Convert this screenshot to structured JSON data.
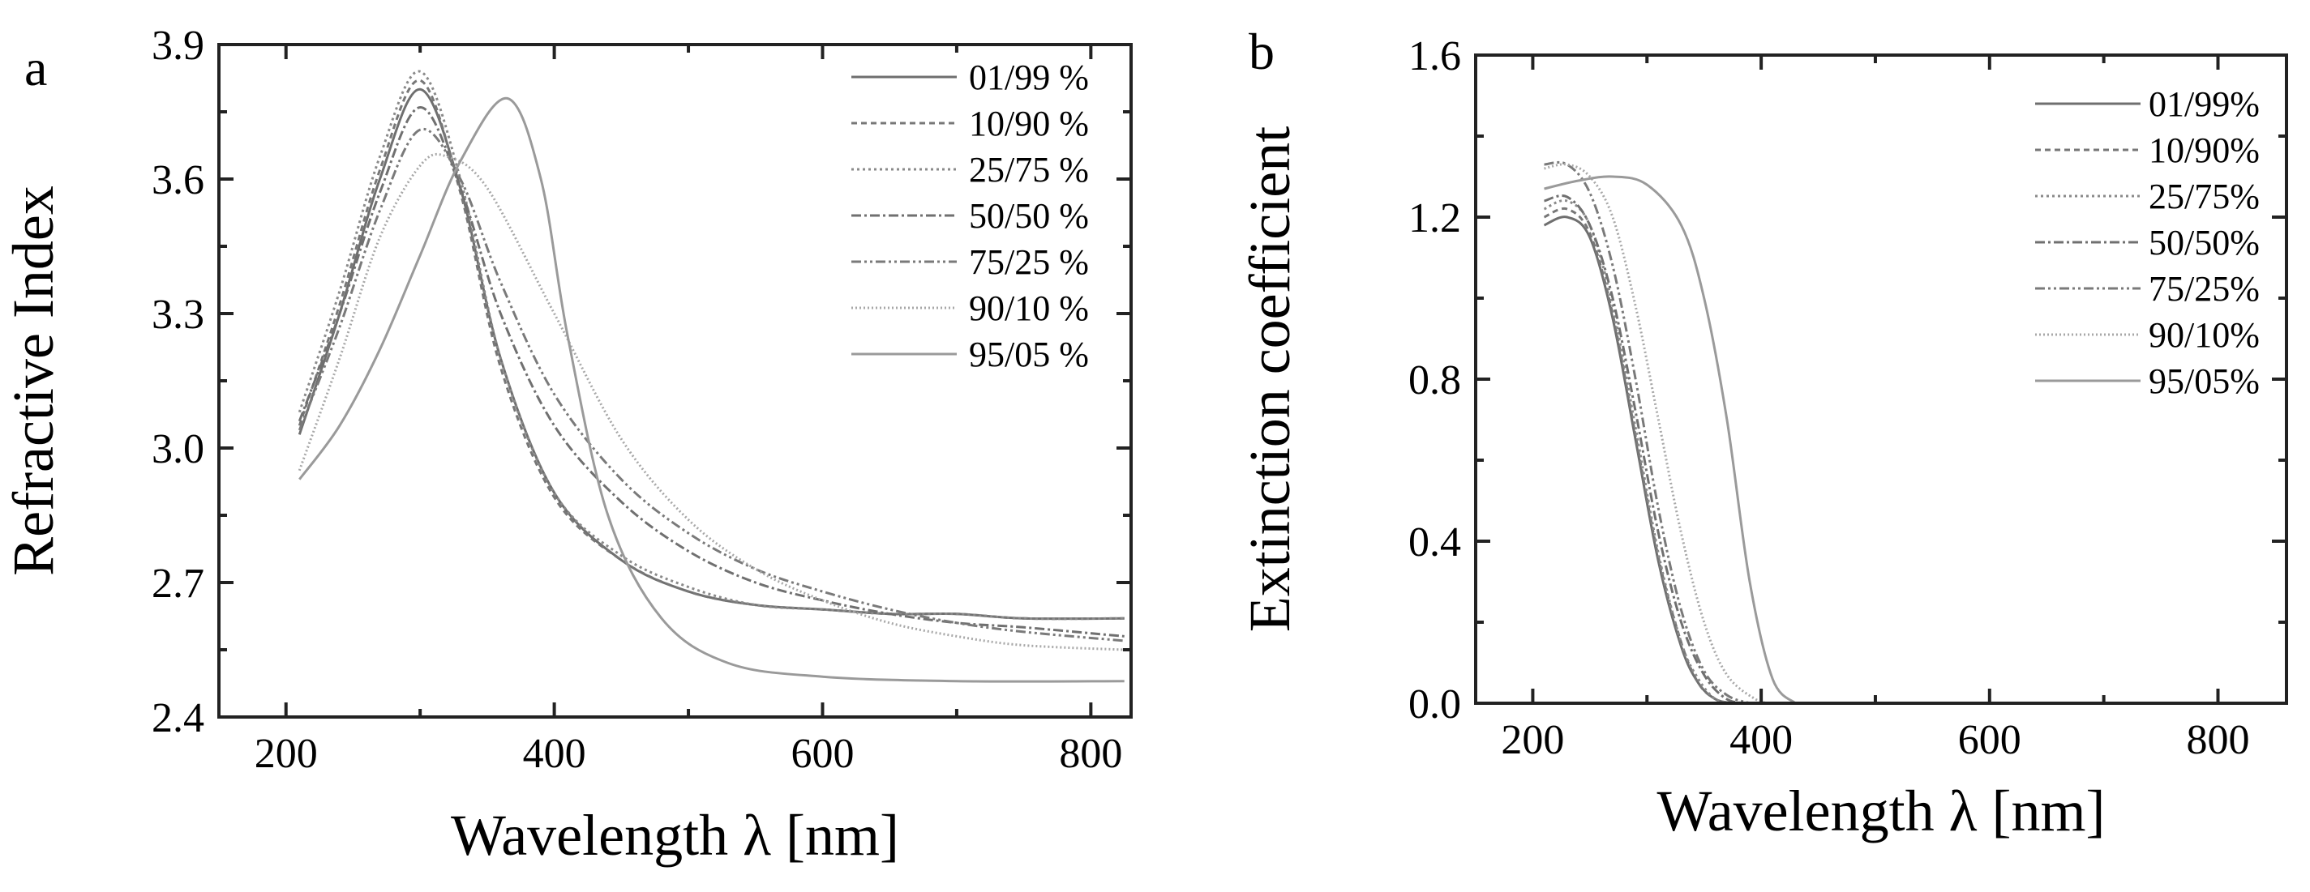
{
  "chart_data": [
    {
      "type": "line",
      "panel_label": "a",
      "xlabel": "Wavelength λ [nm]",
      "ylabel": "Refractive Index",
      "xlim": [
        150,
        830
      ],
      "ylim": [
        2.4,
        3.9
      ],
      "xticks": [
        200,
        400,
        600,
        800
      ],
      "yticks": [
        2.4,
        2.7,
        3.0,
        3.3,
        3.6,
        3.9
      ],
      "xtick_labels": [
        "200",
        "400",
        "600",
        "800"
      ],
      "ytick_labels": [
        "2.4",
        "2.7",
        "3.0",
        "3.3",
        "3.6",
        "3.9"
      ],
      "legend_position": "top-right",
      "series": [
        {
          "name": "01/99 %",
          "color": "#6f6f6f",
          "dash": "",
          "x": [
            210,
            240,
            270,
            300,
            330,
            360,
            400,
            450,
            500,
            550,
            600,
            650,
            700,
            750,
            825
          ],
          "y": [
            3.03,
            3.3,
            3.6,
            3.8,
            3.58,
            3.2,
            2.9,
            2.75,
            2.68,
            2.65,
            2.64,
            2.63,
            2.63,
            2.62,
            2.62
          ]
        },
        {
          "name": "10/90 %",
          "color": "#777777",
          "dash": "7,5",
          "x": [
            210,
            240,
            270,
            300,
            330,
            360,
            400,
            450,
            500,
            550,
            600,
            650,
            700,
            750,
            825
          ],
          "y": [
            3.05,
            3.32,
            3.62,
            3.82,
            3.57,
            3.18,
            2.89,
            2.75,
            2.68,
            2.65,
            2.64,
            2.63,
            2.63,
            2.62,
            2.62
          ]
        },
        {
          "name": "25/75 %",
          "color": "#8a8a8a",
          "dash": "3,4",
          "x": [
            210,
            240,
            270,
            300,
            330,
            360,
            400,
            450,
            500,
            550,
            600,
            650,
            700,
            750,
            825
          ],
          "y": [
            3.08,
            3.35,
            3.65,
            3.84,
            3.6,
            3.2,
            2.9,
            2.76,
            2.69,
            2.65,
            2.64,
            2.63,
            2.63,
            2.62,
            2.62
          ]
        },
        {
          "name": "50/50 %",
          "color": "#707070",
          "dash": "12,4,3,4",
          "x": [
            210,
            240,
            270,
            300,
            330,
            360,
            400,
            450,
            500,
            550,
            600,
            650,
            700,
            750,
            825
          ],
          "y": [
            3.06,
            3.3,
            3.57,
            3.76,
            3.58,
            3.3,
            3.05,
            2.88,
            2.77,
            2.7,
            2.66,
            2.63,
            2.61,
            2.6,
            2.58
          ]
        },
        {
          "name": "75/25 %",
          "color": "#7a7a7a",
          "dash": "12,4,3,4,3,4",
          "x": [
            210,
            240,
            270,
            300,
            330,
            360,
            400,
            450,
            500,
            550,
            600,
            650,
            700,
            750,
            825
          ],
          "y": [
            3.04,
            3.27,
            3.53,
            3.71,
            3.6,
            3.37,
            3.12,
            2.93,
            2.81,
            2.73,
            2.68,
            2.64,
            2.61,
            2.59,
            2.57
          ]
        },
        {
          "name": "90/10 %",
          "color": "#a8a8a8",
          "dash": "2,3",
          "x": [
            210,
            240,
            270,
            300,
            320,
            350,
            400,
            450,
            500,
            550,
            600,
            650,
            700,
            750,
            825
          ],
          "y": [
            2.95,
            3.2,
            3.47,
            3.63,
            3.65,
            3.58,
            3.3,
            3.02,
            2.84,
            2.73,
            2.66,
            2.61,
            2.58,
            2.56,
            2.55
          ]
        },
        {
          "name": "95/05 %",
          "color": "#9a9a9a",
          "dash": "",
          "x": [
            210,
            240,
            270,
            300,
            330,
            365,
            390,
            410,
            440,
            480,
            530,
            600,
            700,
            825
          ],
          "y": [
            2.93,
            3.05,
            3.22,
            3.43,
            3.64,
            3.78,
            3.6,
            3.25,
            2.85,
            2.62,
            2.52,
            2.49,
            2.48,
            2.48
          ]
        }
      ]
    },
    {
      "type": "line",
      "panel_label": "b",
      "xlabel": "Wavelength λ [nm]",
      "ylabel": "Extinction coefficient",
      "xlim": [
        150,
        860
      ],
      "ylim": [
        0.0,
        1.6
      ],
      "xticks": [
        200,
        400,
        600,
        800
      ],
      "yticks": [
        0.0,
        0.4,
        0.8,
        1.2,
        1.6
      ],
      "xtick_labels": [
        "200",
        "400",
        "600",
        "800"
      ],
      "ytick_labels": [
        "0.0",
        "0.4",
        "0.8",
        "1.2",
        "1.6"
      ],
      "legend_position": "top-right",
      "series": [
        {
          "name": "01/99%",
          "color": "#6f6f6f",
          "dash": "",
          "x": [
            210,
            230,
            250,
            270,
            290,
            310,
            330,
            345,
            360,
            375
          ],
          "y": [
            1.18,
            1.2,
            1.15,
            0.95,
            0.65,
            0.35,
            0.14,
            0.05,
            0.01,
            0.0
          ]
        },
        {
          "name": "10/90%",
          "color": "#777777",
          "dash": "7,5",
          "x": [
            210,
            230,
            250,
            270,
            290,
            310,
            330,
            345,
            360,
            375
          ],
          "y": [
            1.2,
            1.22,
            1.16,
            0.96,
            0.66,
            0.36,
            0.15,
            0.05,
            0.01,
            0.0
          ]
        },
        {
          "name": "25/75%",
          "color": "#8a8a8a",
          "dash": "3,4",
          "x": [
            210,
            230,
            250,
            270,
            290,
            310,
            330,
            345,
            360,
            375
          ],
          "y": [
            1.22,
            1.24,
            1.18,
            0.98,
            0.68,
            0.37,
            0.15,
            0.06,
            0.01,
            0.0
          ]
        },
        {
          "name": "50/50%",
          "color": "#707070",
          "dash": "12,4,3,4",
          "x": [
            210,
            230,
            250,
            270,
            290,
            310,
            330,
            350,
            370,
            390
          ],
          "y": [
            1.24,
            1.25,
            1.18,
            1.0,
            0.72,
            0.42,
            0.2,
            0.07,
            0.01,
            0.0
          ]
        },
        {
          "name": "75/25%",
          "color": "#7a7a7a",
          "dash": "12,4,3,4,3,4",
          "x": [
            210,
            230,
            250,
            270,
            290,
            310,
            330,
            350,
            370,
            390
          ],
          "y": [
            1.33,
            1.33,
            1.26,
            1.08,
            0.8,
            0.48,
            0.23,
            0.08,
            0.02,
            0.0
          ]
        },
        {
          "name": "90/10%",
          "color": "#a8a8a8",
          "dash": "2,3",
          "x": [
            210,
            230,
            250,
            270,
            290,
            310,
            330,
            350,
            370,
            395,
            410
          ],
          "y": [
            1.32,
            1.33,
            1.3,
            1.2,
            0.98,
            0.7,
            0.42,
            0.2,
            0.07,
            0.01,
            0.0
          ]
        },
        {
          "name": "95/05%",
          "color": "#9a9a9a",
          "dash": "",
          "x": [
            210,
            240,
            270,
            300,
            330,
            350,
            370,
            390,
            410,
            430
          ],
          "y": [
            1.27,
            1.29,
            1.3,
            1.28,
            1.18,
            1.0,
            0.7,
            0.3,
            0.06,
            0.0
          ]
        }
      ]
    }
  ]
}
